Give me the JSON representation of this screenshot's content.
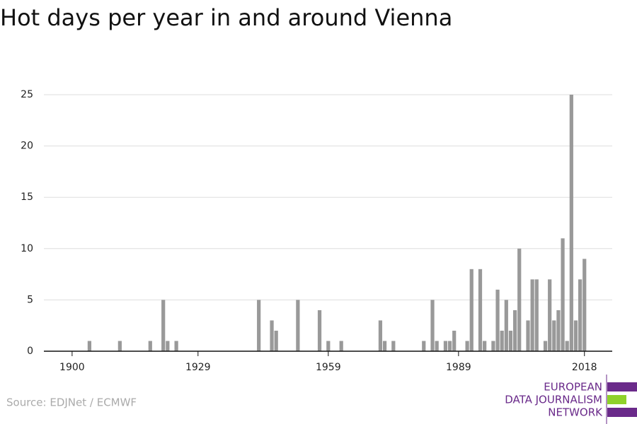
{
  "chart_data": {
    "type": "bar",
    "title": "Hot days per year in and around Vienna",
    "source": "Source: EDJNet / ECMWF",
    "logo": [
      "EUROPEAN",
      "DATA JOURNALISM",
      "NETWORK"
    ],
    "x": [
      1904,
      1911,
      1918,
      1921,
      1922,
      1924,
      1943,
      1946,
      1947,
      1952,
      1957,
      1959,
      1962,
      1971,
      1972,
      1974,
      1981,
      1983,
      1984,
      1986,
      1987,
      1988,
      1991,
      1992,
      1994,
      1995,
      1997,
      1998,
      1999,
      2000,
      2001,
      2002,
      2003,
      2005,
      2006,
      2007,
      2009,
      2010,
      2011,
      2012,
      2013,
      2014,
      2015,
      2016,
      2017,
      2018
    ],
    "values": [
      1,
      1,
      1,
      5,
      1,
      1,
      5,
      3,
      2,
      5,
      4,
      1,
      1,
      3,
      1,
      1,
      1,
      5,
      1,
      1,
      1,
      2,
      1,
      8,
      8,
      1,
      1,
      6,
      2,
      5,
      2,
      4,
      10,
      3,
      7,
      7,
      1,
      7,
      3,
      4,
      11,
      1,
      25,
      3,
      7,
      9
    ],
    "color": "#999999",
    "xlim": [
      1893.5,
      2024.4
    ],
    "xticks": [
      1900,
      1929,
      1959,
      1989,
      2018
    ],
    "ylim": [
      0,
      25
    ],
    "yticks": [
      0,
      5,
      10,
      15,
      20,
      25
    ],
    "grid": true
  }
}
